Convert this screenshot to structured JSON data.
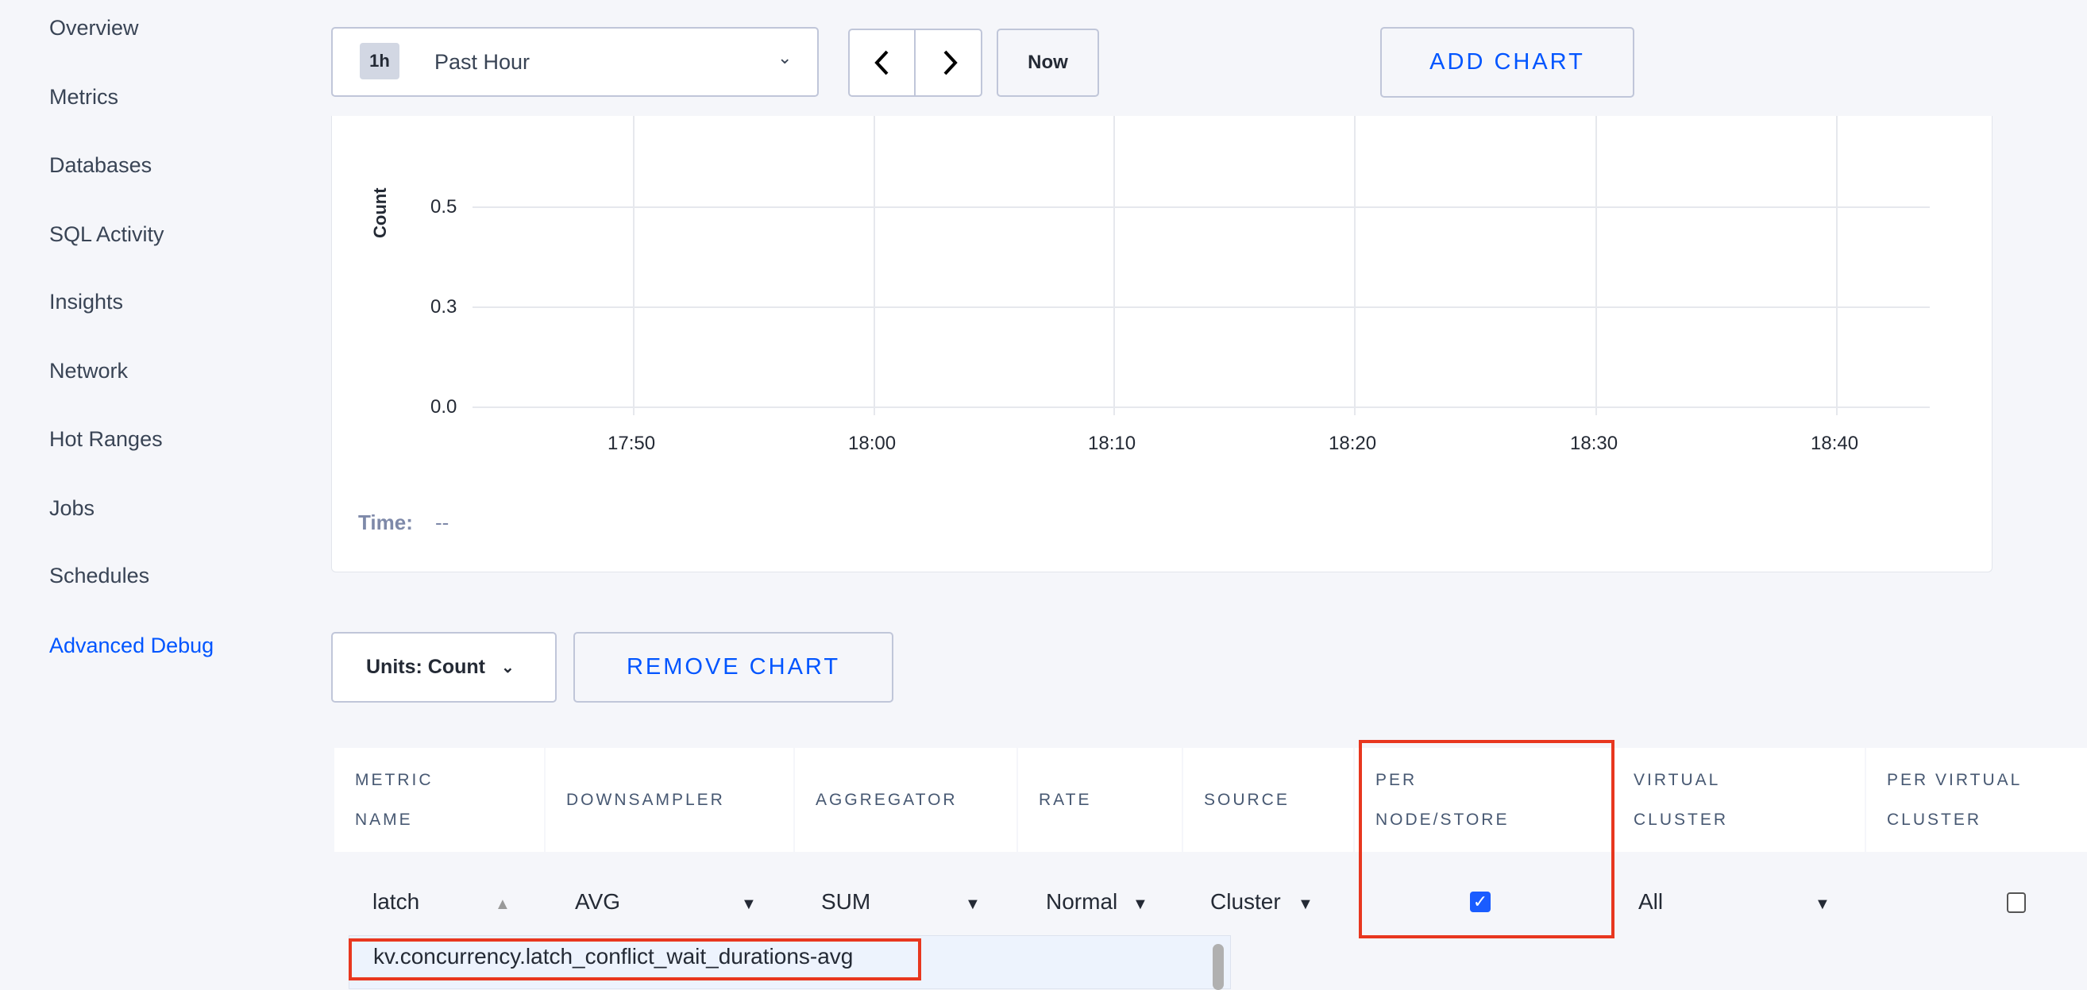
{
  "sidebar": {
    "items": [
      {
        "label": "Overview"
      },
      {
        "label": "Metrics"
      },
      {
        "label": "Databases"
      },
      {
        "label": "SQL Activity"
      },
      {
        "label": "Insights"
      },
      {
        "label": "Network"
      },
      {
        "label": "Hot Ranges"
      },
      {
        "label": "Jobs"
      },
      {
        "label": "Schedules"
      },
      {
        "label": "Advanced Debug",
        "active": true
      }
    ]
  },
  "toolbar": {
    "time_badge": "1h",
    "time_range": "Past Hour",
    "now": "Now",
    "add_chart": "ADD CHART"
  },
  "chart_data": {
    "type": "line",
    "ylabel": "Count",
    "yticks": [
      "0.5",
      "0.3",
      "0.0"
    ],
    "xticks": [
      "17:50",
      "18:00",
      "18:10",
      "18:20",
      "18:30",
      "18:40"
    ],
    "series": [],
    "grid": true
  },
  "chart_footer": {
    "time_label": "Time:",
    "time_value": "--"
  },
  "controls": {
    "units": "Units: Count",
    "remove_chart": "REMOVE CHART"
  },
  "table": {
    "headers": [
      [
        "METRIC",
        "NAME"
      ],
      [
        "DOWNSAMPLER"
      ],
      [
        "AGGREGATOR"
      ],
      [
        "RATE"
      ],
      [
        "SOURCE"
      ],
      [
        "PER",
        "NODE/STORE"
      ],
      [
        "VIRTUAL",
        "CLUSTER"
      ],
      [
        "PER VIRTUAL",
        "CLUSTER"
      ]
    ],
    "row": {
      "metric": "latch",
      "downsampler": "AVG",
      "aggregator": "SUM",
      "rate": "Normal",
      "source": "Cluster",
      "per_node_store": true,
      "virtual_cluster": "All",
      "per_virtual_cluster": false
    }
  },
  "suggestions": [
    "kv.concurrency.latch_conflict_wait_durations-avg"
  ],
  "colors": {
    "accent": "#0055ff",
    "highlight": "#e8371f"
  }
}
